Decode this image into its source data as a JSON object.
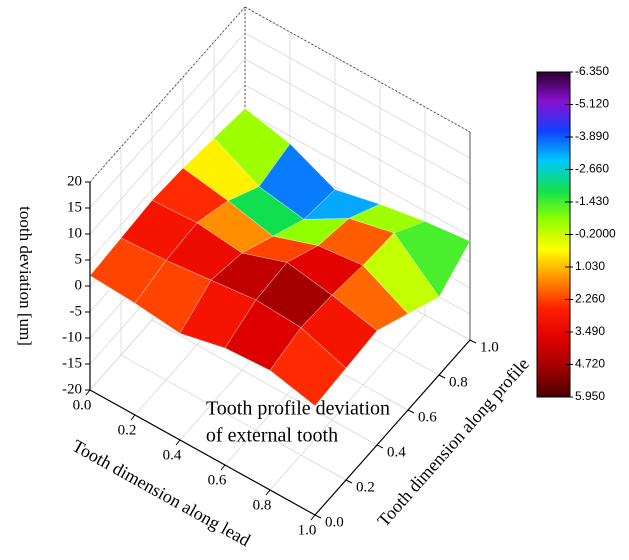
{
  "chart_data": {
    "type": "surface",
    "annotation": [
      "Tooth profile deviation",
      "of external tooth"
    ],
    "xlabel": "Tooth dimension along lead",
    "ylabel": "Tooth dimension along profile",
    "zlabel": "tooth deviation [um]",
    "x": [
      0,
      0.2,
      0.4,
      0.6,
      0.8,
      1
    ],
    "y": [
      0,
      0.2,
      0.4,
      0.6,
      0.8,
      1
    ],
    "z": [
      [
        2.0,
        1.5,
        0.5,
        2.5,
        3.0,
        1.0
      ],
      [
        2.5,
        3.0,
        4.0,
        5.0,
        4.5,
        1.5
      ],
      [
        3.0,
        3.5,
        2.5,
        5.5,
        4.0,
        2.0
      ],
      [
        2.5,
        1.0,
        -1.0,
        2.0,
        3.0,
        -1.5
      ],
      [
        1.5,
        -3.0,
        -4.5,
        0.5,
        2.5,
        -5.0
      ],
      [
        0.5,
        -1.5,
        -5.5,
        -3.5,
        -2.0,
        -1.0
      ]
    ],
    "xlim": [
      0,
      1
    ],
    "ylim": [
      0,
      1
    ],
    "zlim": [
      -20,
      20
    ],
    "xticks": [
      {
        "value": 0,
        "label": "0.0"
      },
      0.2,
      0.4,
      0.6,
      0.8,
      {
        "value": 1,
        "label": "1.0"
      }
    ],
    "yticks": [
      {
        "value": 0,
        "label": "0.0"
      },
      0.2,
      0.4,
      0.6,
      0.8,
      {
        "value": 1,
        "label": "1.0"
      }
    ],
    "zticks": [
      -20,
      -15,
      -10,
      -5,
      0,
      5,
      10,
      15,
      20
    ],
    "grid": true,
    "colormap": [
      "#2a0030",
      "#8a10d0",
      "#1040ff",
      "#00c8ff",
      "#10e050",
      "#90ff00",
      "#ffff00",
      "#ff9000",
      "#ff2000",
      "#e00000",
      "#a00000",
      "#4a0000"
    ],
    "colorbar_lim": [
      -6.35,
      5.95
    ],
    "colorbar_ticks": [
      {
        "value": -6.35,
        "label": "-6.350"
      },
      {
        "value": -5.12,
        "label": "-5.120"
      },
      {
        "value": -3.89,
        "label": "-3.890"
      },
      {
        "value": -2.66,
        "label": "-2.660"
      },
      {
        "value": -1.43,
        "label": "-1.430"
      },
      {
        "value": -0.2,
        "label": "-0.2000"
      },
      {
        "value": 1.03,
        "label": "1.030"
      },
      {
        "value": 2.26,
        "label": "2.260"
      },
      {
        "value": 3.49,
        "label": "3.490"
      },
      {
        "value": 4.72,
        "label": "4.720"
      },
      {
        "value": 5.95,
        "label": "5.950"
      }
    ]
  }
}
